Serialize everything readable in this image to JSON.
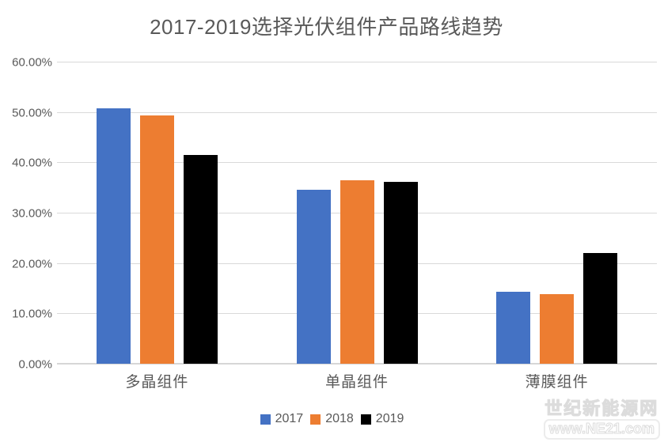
{
  "chart_data": {
    "type": "bar",
    "title": "2017-2019选择光伏组件产品路线趋势",
    "categories": [
      "多晶组件",
      "单晶组件",
      "薄膜组件"
    ],
    "series": [
      {
        "name": "2017",
        "color": "#4472C4",
        "values": [
          50.8,
          34.7,
          14.3
        ]
      },
      {
        "name": "2018",
        "color": "#ED7D31",
        "values": [
          49.4,
          36.6,
          13.9
        ]
      },
      {
        "name": "2019",
        "color": "#000000",
        "values": [
          41.6,
          36.2,
          22.0
        ]
      }
    ],
    "xlabel": "",
    "ylabel": "",
    "ylim": [
      0,
      60
    ],
    "ytick_step": 10,
    "ytick_labels": [
      "0.00%",
      "10.00%",
      "20.00%",
      "30.00%",
      "40.00%",
      "50.00%",
      "60.00%"
    ],
    "grid": true,
    "legend_position": "bottom"
  },
  "colors": {
    "gridline": "#D9D9D9",
    "axis_line": "#D6D6D6",
    "text": "#595959",
    "background": "#FFFFFF"
  },
  "watermark": {
    "line1": "世纪新能源网",
    "line2": "www.NE21.com"
  }
}
